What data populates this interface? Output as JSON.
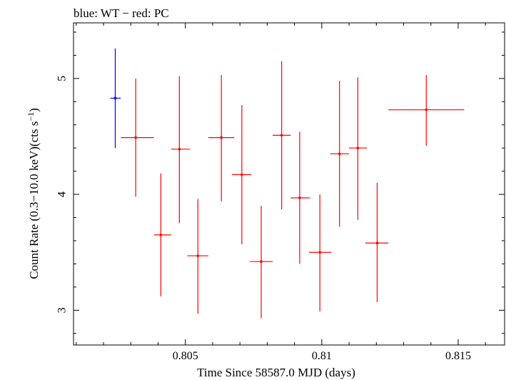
{
  "chart_data": {
    "type": "scatter",
    "title": "blue: WT − red: PC",
    "xlabel": "Time Since 58587.0 MJD (days)",
    "ylabel_main": "Count Rate (0.3−10.0 keV)(cts s",
    "ylabel_sup": "−1",
    "ylabel_close": ")",
    "xlim": [
      0.8009,
      0.8167
    ],
    "ylim": [
      2.7,
      5.48
    ],
    "xticks": [
      {
        "value": 0.805,
        "label": "0.805"
      },
      {
        "value": 0.81,
        "label": "0.81"
      },
      {
        "value": 0.815,
        "label": "0.815"
      }
    ],
    "yticks": [
      {
        "value": 3,
        "label": "3"
      },
      {
        "value": 4,
        "label": "4"
      },
      {
        "value": 5,
        "label": "5"
      }
    ],
    "series": [
      {
        "name": "WT",
        "color": "#0000ff",
        "points": [
          {
            "x": 0.80243,
            "xerr_lo": 0.80225,
            "xerr_hi": 0.80263,
            "y": 4.83,
            "yerr_lo": 4.4,
            "yerr_hi": 5.26
          }
        ]
      },
      {
        "name": "PC",
        "color": "#ff0000",
        "points": [
          {
            "x": 0.80318,
            "xerr_lo": 0.80263,
            "xerr_hi": 0.80385,
            "y": 4.49,
            "yerr_lo": 3.98,
            "yerr_hi": 5.0
          },
          {
            "x": 0.8041,
            "xerr_lo": 0.80385,
            "xerr_hi": 0.80448,
            "y": 3.65,
            "yerr_lo": 3.12,
            "yerr_hi": 4.18
          },
          {
            "x": 0.80478,
            "xerr_lo": 0.80448,
            "xerr_hi": 0.80517,
            "y": 4.39,
            "yerr_lo": 3.75,
            "yerr_hi": 5.02
          },
          {
            "x": 0.80546,
            "xerr_lo": 0.80507,
            "xerr_hi": 0.80584,
            "y": 3.47,
            "yerr_lo": 2.97,
            "yerr_hi": 3.96
          },
          {
            "x": 0.80632,
            "xerr_lo": 0.80584,
            "xerr_hi": 0.80679,
            "y": 4.49,
            "yerr_lo": 3.94,
            "yerr_hi": 5.03
          },
          {
            "x": 0.80707,
            "xerr_lo": 0.80671,
            "xerr_hi": 0.80742,
            "y": 4.17,
            "yerr_lo": 3.57,
            "yerr_hi": 4.77
          },
          {
            "x": 0.80778,
            "xerr_lo": 0.80736,
            "xerr_hi": 0.8082,
            "y": 3.42,
            "yerr_lo": 2.93,
            "yerr_hi": 3.9
          },
          {
            "x": 0.80853,
            "xerr_lo": 0.8082,
            "xerr_hi": 0.80886,
            "y": 4.51,
            "yerr_lo": 3.87,
            "yerr_hi": 5.15
          },
          {
            "x": 0.80919,
            "xerr_lo": 0.80886,
            "xerr_hi": 0.80957,
            "y": 3.97,
            "yerr_lo": 3.4,
            "yerr_hi": 4.54
          },
          {
            "x": 0.80993,
            "xerr_lo": 0.80953,
            "xerr_hi": 0.81035,
            "y": 3.5,
            "yerr_lo": 2.99,
            "yerr_hi": 4.0
          },
          {
            "x": 0.81065,
            "xerr_lo": 0.81031,
            "xerr_hi": 0.811,
            "y": 4.35,
            "yerr_lo": 3.72,
            "yerr_hi": 4.98
          },
          {
            "x": 0.81132,
            "xerr_lo": 0.811,
            "xerr_hi": 0.81166,
            "y": 4.4,
            "yerr_lo": 3.78,
            "yerr_hi": 5.01
          },
          {
            "x": 0.81203,
            "xerr_lo": 0.8116,
            "xerr_hi": 0.81244,
            "y": 3.58,
            "yerr_lo": 3.07,
            "yerr_hi": 4.1
          },
          {
            "x": 0.81383,
            "xerr_lo": 0.81244,
            "xerr_hi": 0.81522,
            "y": 4.73,
            "yerr_lo": 4.42,
            "yerr_hi": 5.03
          }
        ]
      }
    ]
  }
}
